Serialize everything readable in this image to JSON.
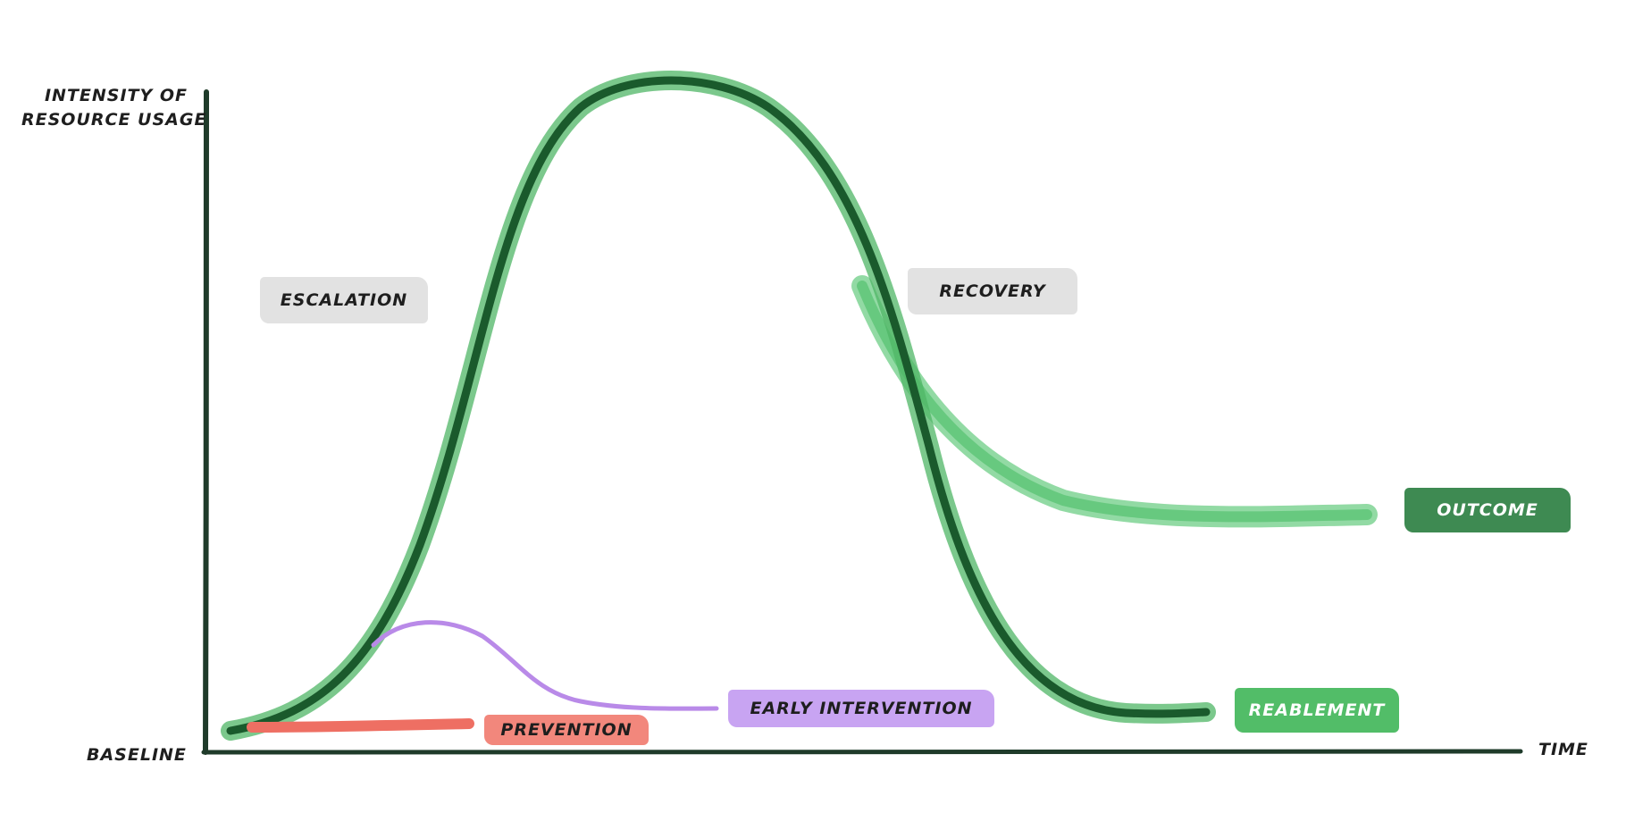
{
  "axes": {
    "y_label_line1": "INTENSITY OF",
    "y_label_line2": "RESOURCE USAGE",
    "origin_label": "BASELINE",
    "x_label": "TIME"
  },
  "phases": {
    "escalation": "ESCALATION",
    "recovery": "RECOVERY"
  },
  "outcomes": {
    "prevention": "PREVENTION",
    "early_intervention": "EARLY INTERVENTION",
    "reablement": "REABLEMENT",
    "outcome": "OUTCOME"
  },
  "colors": {
    "axis": "#1f3b2a",
    "main_curve": "#2e8a44",
    "main_curve_dark": "#1a5a2c",
    "recovery_curve": "#5cc476",
    "early_intervention_curve": "#b98ae8",
    "prevention_stroke": "#ee6f63"
  }
}
